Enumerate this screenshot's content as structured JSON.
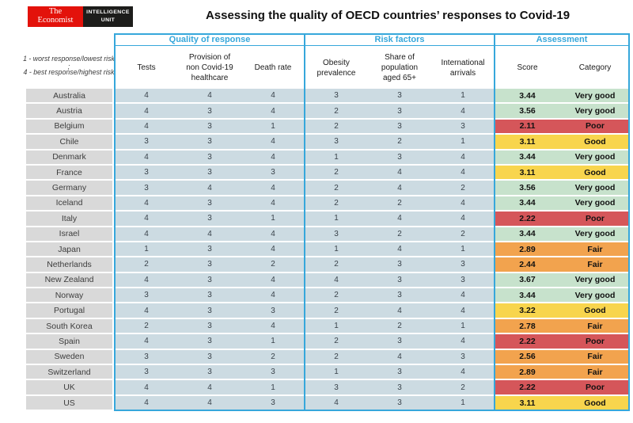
{
  "brand": {
    "economist_logo": "The\nEconomist",
    "eiu_logo": "INTELLIGENCE\nUNIT"
  },
  "title": "Assessing the quality of OECD countries’ responses to Covid-19",
  "legend": {
    "line1": "1 - worst response/lowest risk ;",
    "line2": "4 - best response/highest risk"
  },
  "style": {
    "accent_cyan": "#36a7db",
    "row_blue": "#ccdbe2",
    "country_gray": "#d9d9d9",
    "economist_red": "#e3120b",
    "eiu_black": "#1d1d1b"
  },
  "chart_data": {
    "type": "table",
    "title": "Assessing the quality of OECD countries’ responses to Covid-19",
    "scale_note": "1 - worst response/lowest risk ; 4 - best response/highest risk",
    "column_groups": [
      {
        "label": "Quality of response",
        "span": 3
      },
      {
        "label": "Risk factors",
        "span": 3
      },
      {
        "label": "Assessment",
        "span": 2
      }
    ],
    "columns": [
      "Tests",
      "Provision of\nnon Covid-19\nhealthcare",
      "Death rate",
      "Obesity\nprevalence",
      "Share of\npopulation\naged 65+",
      "International\narrivals",
      "Score",
      "Category"
    ],
    "category_colors": {
      "Very good": "#c7e2cc",
      "Good": "#f8d54d",
      "Fair": "#f2a34e",
      "Poor": "#d5565a"
    },
    "rows": [
      {
        "country": "Australia",
        "values": [
          4,
          4,
          4,
          3,
          3,
          1
        ],
        "score": "3.44",
        "category": "Very good"
      },
      {
        "country": "Austria",
        "values": [
          4,
          3,
          4,
          2,
          3,
          4
        ],
        "score": "3.56",
        "category": "Very good"
      },
      {
        "country": "Belgium",
        "values": [
          4,
          3,
          1,
          2,
          3,
          3
        ],
        "score": "2.11",
        "category": "Poor"
      },
      {
        "country": "Chile",
        "values": [
          3,
          3,
          4,
          3,
          2,
          1
        ],
        "score": "3.11",
        "category": "Good"
      },
      {
        "country": "Denmark",
        "values": [
          4,
          3,
          4,
          1,
          3,
          4
        ],
        "score": "3.44",
        "category": "Very good"
      },
      {
        "country": "France",
        "values": [
          3,
          3,
          3,
          2,
          4,
          4
        ],
        "score": "3.11",
        "category": "Good"
      },
      {
        "country": "Germany",
        "values": [
          3,
          4,
          4,
          2,
          4,
          2
        ],
        "score": "3.56",
        "category": "Very good"
      },
      {
        "country": "Iceland",
        "values": [
          4,
          3,
          4,
          2,
          2,
          4
        ],
        "score": "3.44",
        "category": "Very good"
      },
      {
        "country": "Italy",
        "values": [
          4,
          3,
          1,
          1,
          4,
          4
        ],
        "score": "2.22",
        "category": "Poor"
      },
      {
        "country": "Israel",
        "values": [
          4,
          4,
          4,
          3,
          2,
          2
        ],
        "score": "3.44",
        "category": "Very good"
      },
      {
        "country": "Japan",
        "values": [
          1,
          3,
          4,
          1,
          4,
          1
        ],
        "score": "2.89",
        "category": "Fair"
      },
      {
        "country": "Netherlands",
        "values": [
          2,
          3,
          2,
          2,
          3,
          3
        ],
        "score": "2.44",
        "category": "Fair"
      },
      {
        "country": "New Zealand",
        "values": [
          4,
          3,
          4,
          4,
          3,
          3
        ],
        "score": "3.67",
        "category": "Very good"
      },
      {
        "country": "Norway",
        "values": [
          3,
          3,
          4,
          2,
          3,
          4
        ],
        "score": "3.44",
        "category": "Very good"
      },
      {
        "country": "Portugal",
        "values": [
          4,
          3,
          3,
          2,
          4,
          4
        ],
        "score": "3.22",
        "category": "Good"
      },
      {
        "country": "South Korea",
        "values": [
          2,
          3,
          4,
          1,
          2,
          1
        ],
        "score": "2.78",
        "category": "Fair"
      },
      {
        "country": "Spain",
        "values": [
          4,
          3,
          1,
          2,
          3,
          4
        ],
        "score": "2.22",
        "category": "Poor"
      },
      {
        "country": "Sweden",
        "values": [
          3,
          3,
          2,
          2,
          4,
          3
        ],
        "score": "2.56",
        "category": "Fair"
      },
      {
        "country": "Switzerland",
        "values": [
          3,
          3,
          3,
          1,
          3,
          4
        ],
        "score": "2.89",
        "category": "Fair"
      },
      {
        "country": "UK",
        "values": [
          4,
          4,
          1,
          3,
          3,
          2
        ],
        "score": "2.22",
        "category": "Poor"
      },
      {
        "country": "US",
        "values": [
          4,
          4,
          3,
          4,
          3,
          1
        ],
        "score": "3.11",
        "category": "Good"
      }
    ]
  }
}
